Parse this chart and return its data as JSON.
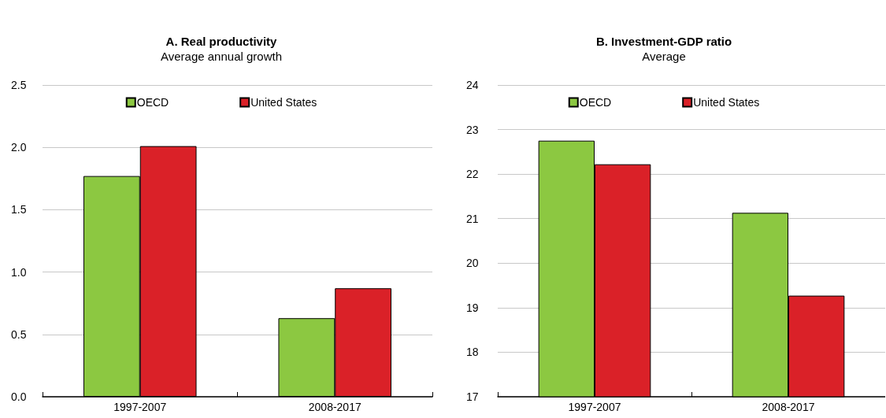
{
  "chart_data": [
    {
      "type": "bar",
      "title": "A. Real productivity",
      "subtitle": "Average annual growth",
      "categories": [
        "1997-2007",
        "2008-2017"
      ],
      "series": [
        {
          "name": "OECD",
          "color": "#8cc841",
          "values": [
            1.77,
            0.63
          ]
        },
        {
          "name": "United States",
          "color": "#da2128",
          "values": [
            2.01,
            0.87
          ]
        }
      ],
      "ylim": [
        0,
        2.5
      ],
      "yticks": [
        {
          "value": 0,
          "label": "0.0"
        },
        {
          "value": 0.5,
          "label": "0.5"
        },
        {
          "value": 1,
          "label": "1.0"
        },
        {
          "value": 1.5,
          "label": "1.5"
        },
        {
          "value": 2,
          "label": "2.0"
        },
        {
          "value": 2.5,
          "label": "2.5"
        }
      ],
      "grid": "y",
      "legend": "top"
    },
    {
      "type": "bar",
      "title": "B. Investment-GDP ratio",
      "subtitle": "Average",
      "categories": [
        "1997-2007",
        "2008-2017"
      ],
      "series": [
        {
          "name": "OECD",
          "color": "#8cc841",
          "values": [
            22.75,
            21.13
          ]
        },
        {
          "name": "United States",
          "color": "#da2128",
          "values": [
            22.22,
            19.27
          ]
        }
      ],
      "ylim": [
        17,
        24
      ],
      "yticks": [
        17,
        18,
        19,
        20,
        21,
        22,
        23,
        24
      ],
      "grid": "y",
      "legend": "top"
    }
  ]
}
